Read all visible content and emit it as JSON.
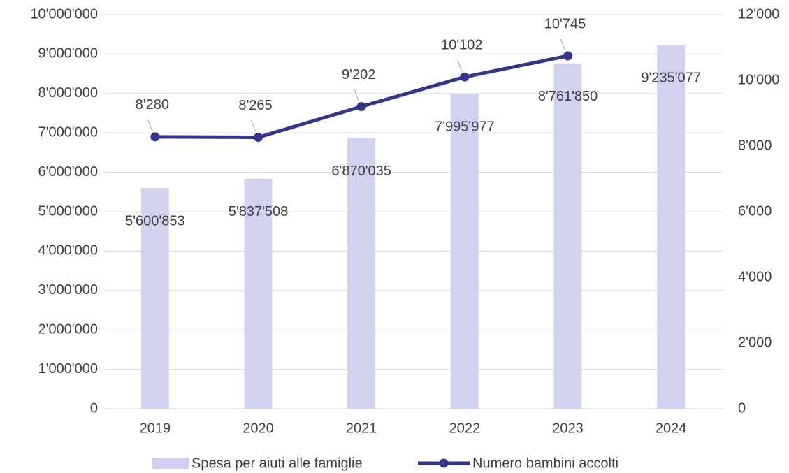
{
  "chart_data": {
    "type": "bar+line",
    "categories": [
      "2019",
      "2020",
      "2021",
      "2022",
      "2023",
      "2024"
    ],
    "series": [
      {
        "name": "Spesa per aiuti alle famiglie",
        "type": "bar",
        "color": "#d1d1f0",
        "axis": "y",
        "values": [
          5600853,
          5837508,
          6870035,
          7995977,
          8761850,
          9235077
        ],
        "value_labels": [
          "5'600'853",
          "5'837'508",
          "6'870'035",
          "7'995'977",
          "8'761'850",
          "9'235'077"
        ]
      },
      {
        "name": "Numero bambini accolti",
        "type": "line",
        "color": "#33348e",
        "axis": "y2",
        "values": [
          8280,
          8265,
          9202,
          10102,
          10745,
          null
        ],
        "value_labels": [
          "8'280",
          "8'265",
          "9'202",
          "10'102",
          "10'745",
          null
        ]
      }
    ],
    "ylim": [
      0,
      10000000
    ],
    "yticks": [
      0,
      {
        "value": 1000000,
        "label": "1'000'000"
      },
      {
        "value": 2000000,
        "label": "2'000'000"
      },
      {
        "value": 3000000,
        "label": "3'000'000"
      },
      {
        "value": 4000000,
        "label": "4'000'000"
      },
      {
        "value": 5000000,
        "label": "5'000'000"
      },
      {
        "value": 6000000,
        "label": "6'000'000"
      },
      {
        "value": 7000000,
        "label": "7'000'000"
      },
      {
        "value": 8000000,
        "label": "8'000'000"
      },
      {
        "value": 9000000,
        "label": "9'000'000"
      },
      {
        "value": 10000000,
        "label": "10'000'000"
      }
    ],
    "y2lim": [
      0,
      12000
    ],
    "y2ticks": [
      0,
      {
        "value": 2000,
        "label": "2'000"
      },
      {
        "value": 4000,
        "label": "4'000"
      },
      {
        "value": 6000,
        "label": "6'000"
      },
      {
        "value": 8000,
        "label": "8'000"
      },
      {
        "value": 10000,
        "label": "10'000"
      },
      {
        "value": 12000,
        "label": "12'000"
      }
    ],
    "grid": true,
    "legend": "bottom"
  }
}
